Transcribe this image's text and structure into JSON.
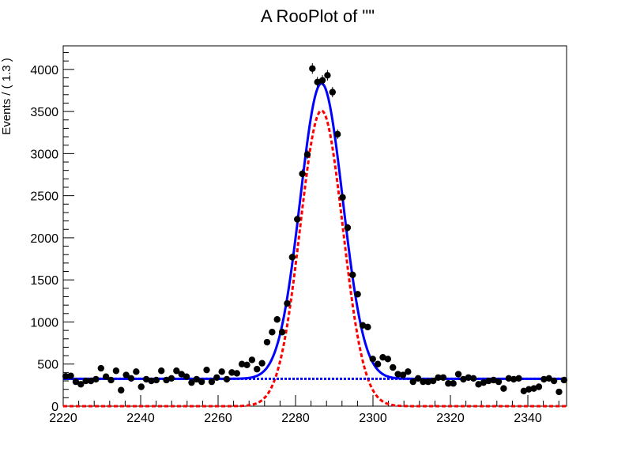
{
  "chart_data": {
    "type": "scatter",
    "title": "A RooPlot of \"\"",
    "xlabel": "",
    "ylabel": "Events / ( 1.3 )",
    "xlim": [
      2220,
      2350
    ],
    "ylim": [
      0,
      4280
    ],
    "x_ticks": [
      2220,
      2240,
      2260,
      2280,
      2300,
      2320,
      2340
    ],
    "y_ticks": [
      0,
      500,
      1000,
      1500,
      2000,
      2500,
      3000,
      3500,
      4000
    ],
    "grid": false,
    "legend": "none",
    "series": [
      {
        "kind": "points-with-errors",
        "color": "#000000",
        "x": [
          2220.65,
          2221.95,
          2223.25,
          2224.55,
          2225.85,
          2227.15,
          2228.45,
          2229.75,
          2231.05,
          2232.35,
          2233.65,
          2234.95,
          2236.25,
          2237.55,
          2238.85,
          2240.15,
          2241.45,
          2242.75,
          2244.05,
          2245.35,
          2246.65,
          2247.95,
          2249.25,
          2250.55,
          2251.85,
          2253.15,
          2254.45,
          2255.75,
          2257.05,
          2258.35,
          2259.65,
          2260.95,
          2262.25,
          2263.55,
          2264.85,
          2266.15,
          2267.45,
          2268.75,
          2270.05,
          2271.35,
          2272.65,
          2273.95,
          2275.25,
          2276.55,
          2277.85,
          2279.15,
          2280.45,
          2281.75,
          2283.05,
          2284.35,
          2285.65,
          2286.95,
          2288.25,
          2289.55,
          2290.85,
          2292.15,
          2293.45,
          2294.75,
          2296.05,
          2297.35,
          2298.65,
          2299.95,
          2301.25,
          2302.55,
          2303.85,
          2305.15,
          2306.45,
          2307.75,
          2309.05,
          2310.35,
          2311.65,
          2312.95,
          2314.25,
          2315.55,
          2316.85,
          2318.15,
          2319.45,
          2320.75,
          2322.05,
          2323.35,
          2324.65,
          2325.95,
          2327.25,
          2328.55,
          2329.85,
          2331.15,
          2332.45,
          2333.75,
          2335.05,
          2336.35,
          2337.65,
          2338.95,
          2340.25,
          2341.55,
          2342.85,
          2344.15,
          2345.45,
          2346.75,
          2348.05,
          2349.35
        ],
        "y": [
          355,
          360,
          290,
          260,
          300,
          300,
          320,
          450,
          350,
          310,
          420,
          190,
          370,
          330,
          410,
          230,
          320,
          300,
          310,
          420,
          310,
          330,
          420,
          380,
          350,
          280,
          320,
          290,
          430,
          290,
          340,
          410,
          320,
          400,
          390,
          500,
          490,
          550,
          440,
          510,
          760,
          880,
          1030,
          880,
          1220,
          1770,
          2220,
          2760,
          2990,
          4010,
          3850,
          3870,
          3930,
          3730,
          3230,
          2480,
          2120,
          1560,
          1330,
          960,
          940,
          560,
          500,
          580,
          560,
          460,
          380,
          370,
          410,
          290,
          330,
          290,
          290,
          300,
          340,
          340,
          270,
          270,
          380,
          320,
          340,
          330,
          260,
          280,
          300,
          310,
          290,
          210,
          330,
          320,
          330,
          180,
          200,
          210,
          230,
          320,
          330,
          300,
          170,
          310
        ]
      },
      {
        "kind": "line",
        "name": "",
        "color": "#0000ff",
        "style": "solid",
        "formula": "background + gaussian",
        "background": 325,
        "peak_height": 3510,
        "mean": 2286.7,
        "sigma": 5.5
      },
      {
        "kind": "line",
        "name": "",
        "color": "#ff0000",
        "style": "dashed",
        "formula": "gaussian",
        "peak_height": 3510,
        "mean": 2286.7,
        "sigma": 5.5
      },
      {
        "kind": "line",
        "name": "",
        "color": "#0000ff",
        "style": "dotted",
        "formula": "constant",
        "background": 325
      }
    ]
  }
}
